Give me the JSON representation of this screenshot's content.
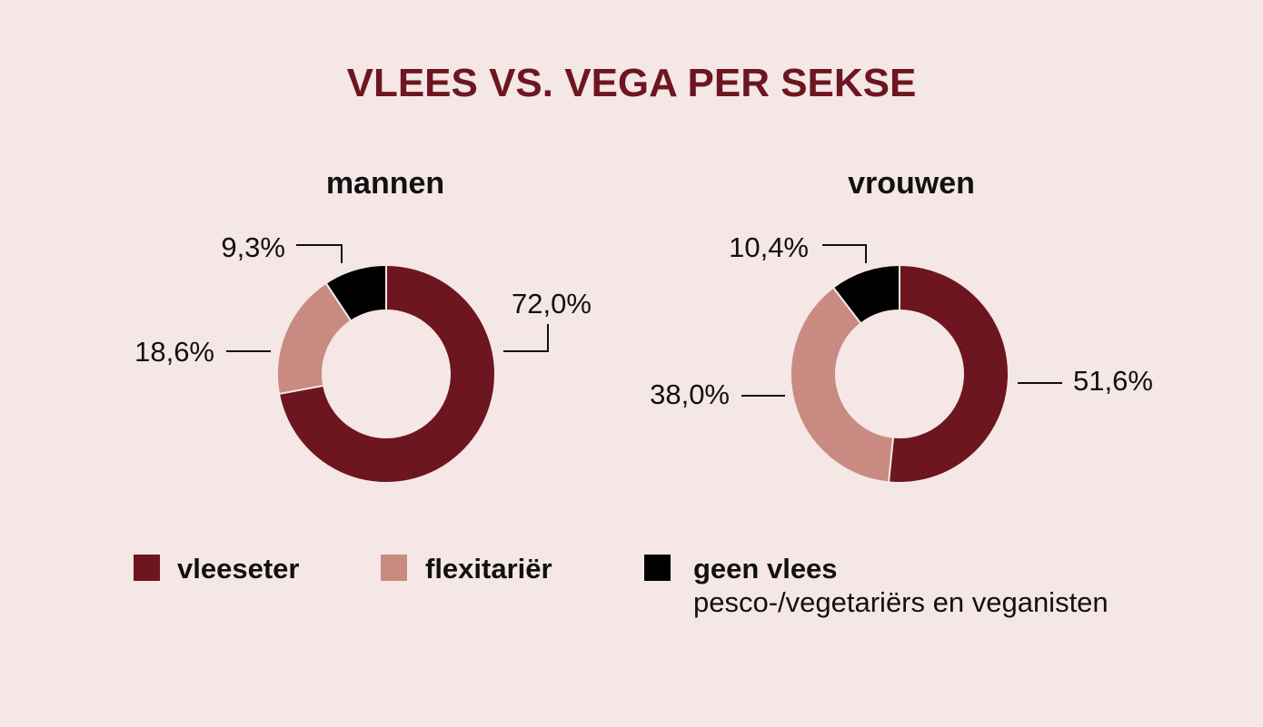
{
  "title": "VLEES VS. VEGA PER SEKSE",
  "colors": {
    "background": "#f4e7e6",
    "title": "#6e1620",
    "vleeseter": "#6e1620",
    "flexitarier": "#c98a81",
    "geen_vlees": "#000000"
  },
  "chart_data": [
    {
      "type": "pie",
      "donut": true,
      "title": "mannen",
      "categories": [
        "vleeseter",
        "flexitariër",
        "geen vlees"
      ],
      "values": [
        72.0,
        18.6,
        9.3
      ],
      "labels": [
        "72,0%",
        "18,6%",
        "9,3%"
      ]
    },
    {
      "type": "pie",
      "donut": true,
      "title": "vrouwen",
      "categories": [
        "vleeseter",
        "flexitariër",
        "geen vlees"
      ],
      "values": [
        51.6,
        38.0,
        10.4
      ],
      "labels": [
        "51,6%",
        "38,0%",
        "10,4%"
      ]
    }
  ],
  "legend": [
    {
      "label": "vleeseter",
      "color": "#6e1620",
      "sublabel": ""
    },
    {
      "label": "flexitariër",
      "color": "#c98a81",
      "sublabel": ""
    },
    {
      "label": "geen vlees",
      "color": "#000000",
      "sublabel": "pesco-/vegetariërs en veganisten"
    }
  ]
}
